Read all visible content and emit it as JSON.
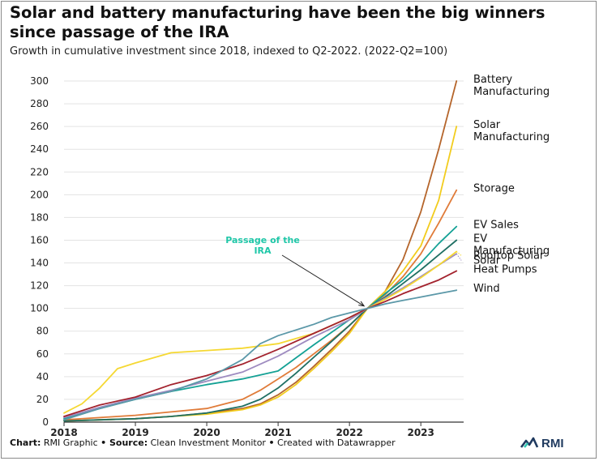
{
  "header": {
    "title": "Solar and battery manufacturing have been the big winners since passage of the IRA",
    "subtitle": "Growth in cumulative investment since 2018, indexed to Q2-2022. (2022-Q2=100)"
  },
  "footer": {
    "chart_label": "Chart:",
    "chart_value": " RMI Graphic ",
    "sep1": "•",
    "source_label": " Source:",
    "source_value": " Clean Investment Monitor ",
    "sep2": "•",
    "created": " Created with Datawrapper"
  },
  "logo": {
    "text": "RMI",
    "icon": "rmi-logo-icon",
    "color": "#1f3a5f"
  },
  "chart_data": {
    "type": "line",
    "title": "Solar and battery manufacturing have been the big winners since passage of the IRA",
    "subtitle": "Growth in cumulative investment since 2018, indexed to Q2-2022. (2022-Q2=100)",
    "xlabel": "",
    "ylabel": "",
    "xlim": [
      2018,
      2023.6
    ],
    "ylim": [
      0,
      300
    ],
    "x_ticks": [
      2018,
      2019,
      2020,
      2021,
      2022,
      2023
    ],
    "x_tick_labels": [
      "2018",
      "2019",
      "2020",
      "2021",
      "2022",
      "2023"
    ],
    "y_ticks": [
      0,
      20,
      40,
      60,
      80,
      100,
      120,
      140,
      160,
      180,
      200,
      220,
      240,
      260,
      280,
      300
    ],
    "y_tick_labels": [
      "0",
      "20",
      "40",
      "60",
      "80",
      "100",
      "120",
      "140",
      "160",
      "180",
      "200",
      "220",
      "240",
      "260",
      "280",
      "300"
    ],
    "grid": true,
    "legend": "direct labels at line ends",
    "annotation": {
      "text_line1": "Passage of the",
      "text_line2": "IRA",
      "color": "#1fc7a8",
      "x": 2022.25,
      "y": 100
    },
    "series": [
      {
        "name": "Battery Manufacturing",
        "label_lines": [
          "Battery",
          "Manufacturing"
        ],
        "color": "#b5652b",
        "x": [
          2018,
          2018.5,
          2019,
          2019.5,
          2020,
          2020.5,
          2020.75,
          2021,
          2021.25,
          2021.5,
          2021.75,
          2022,
          2022.25,
          2022.5,
          2022.75,
          2023,
          2023.25,
          2023.5
        ],
        "y": [
          1,
          2,
          3,
          5,
          8,
          12,
          16,
          24,
          35,
          49,
          64,
          80,
          100,
          115,
          143,
          185,
          240,
          300
        ]
      },
      {
        "name": "Solar Manufacturing",
        "label_lines": [
          "Solar",
          "Manufacturing"
        ],
        "color": "#f2cc1d",
        "x": [
          2018,
          2018.5,
          2019,
          2019.5,
          2020,
          2020.5,
          2020.75,
          2021,
          2021.25,
          2021.5,
          2021.75,
          2022,
          2022.25,
          2022.5,
          2022.75,
          2023,
          2023.25,
          2023.5
        ],
        "y": [
          1,
          2,
          3,
          5,
          7,
          11,
          15,
          22,
          33,
          47,
          62,
          78,
          100,
          115,
          133,
          155,
          195,
          260
        ]
      },
      {
        "name": "Storage",
        "label_lines": [
          "Storage"
        ],
        "color": "#e07b39",
        "x": [
          2018,
          2018.5,
          2019,
          2019.5,
          2020,
          2020.5,
          2020.75,
          2021,
          2021.25,
          2021.5,
          2021.75,
          2022,
          2022.25,
          2022.5,
          2022.75,
          2023,
          2023.25,
          2023.5
        ],
        "y": [
          2,
          4,
          6,
          9,
          12,
          20,
          28,
          38,
          48,
          60,
          72,
          85,
          100,
          112,
          128,
          148,
          175,
          204
        ]
      },
      {
        "name": "EV Sales",
        "label_lines": [
          "EV Sales"
        ],
        "color": "#14a195",
        "x": [
          2018,
          2018.5,
          2019,
          2019.5,
          2020,
          2020.5,
          2021,
          2021.5,
          2022,
          2022.25,
          2022.5,
          2022.75,
          2023,
          2023.25,
          2023.5
        ],
        "y": [
          3,
          12,
          20,
          27,
          33,
          38,
          45,
          68,
          90,
          100,
          113,
          125,
          140,
          157,
          172
        ]
      },
      {
        "name": "EV Manufacturing",
        "label_lines": [
          "EV",
          "Manufacturing"
        ],
        "color": "#1f6f63",
        "x": [
          2018,
          2018.5,
          2019,
          2019.5,
          2020,
          2020.5,
          2020.75,
          2021,
          2021.25,
          2021.5,
          2021.75,
          2022,
          2022.25,
          2022.5,
          2022.75,
          2023,
          2023.25,
          2023.5
        ],
        "y": [
          1,
          2,
          3,
          5,
          8,
          14,
          20,
          30,
          43,
          57,
          71,
          85,
          100,
          110,
          122,
          134,
          147,
          160
        ]
      },
      {
        "name": "Solar",
        "label_lines": [
          "Solar"
        ],
        "color": "#9e8bc0",
        "x": [
          2018,
          2018.5,
          2019,
          2019.5,
          2020,
          2020.5,
          2021,
          2021.5,
          2022,
          2022.25,
          2022.5,
          2022.75,
          2023,
          2023.25,
          2023.5
        ],
        "y": [
          4,
          13,
          21,
          28,
          36,
          44,
          58,
          75,
          90,
          100,
          109,
          118,
          128,
          138,
          148
        ]
      },
      {
        "name": "Rooftop Solar",
        "label_lines": [
          "Rooftop Solar"
        ],
        "color": "#f5d832",
        "x": [
          2018,
          2018.25,
          2018.5,
          2018.75,
          2019,
          2019.5,
          2020,
          2020.5,
          2021,
          2021.5,
          2022,
          2022.25,
          2022.5,
          2022.75,
          2023,
          2023.25,
          2023.5
        ],
        "y": [
          8,
          16,
          30,
          47,
          52,
          61,
          63,
          65,
          69,
          78,
          92,
          100,
          108,
          117,
          127,
          138,
          150
        ]
      },
      {
        "name": "Heat Pumps",
        "label_lines": [
          "Heat Pumps"
        ],
        "color": "#a3232e",
        "x": [
          2018,
          2018.5,
          2019,
          2019.5,
          2020,
          2020.5,
          2021,
          2021.5,
          2022,
          2022.25,
          2022.5,
          2022.75,
          2023,
          2023.25,
          2023.5
        ],
        "y": [
          5,
          15,
          22,
          33,
          41,
          51,
          64,
          78,
          92,
          100,
          106,
          113,
          119,
          125,
          133
        ]
      },
      {
        "name": "Wind",
        "label_lines": [
          "Wind"
        ],
        "color": "#5b98a8",
        "x": [
          2018,
          2018.5,
          2019,
          2019.5,
          2020,
          2020.5,
          2020.75,
          2021,
          2021.5,
          2021.75,
          2022,
          2022.25,
          2022.5,
          2022.75,
          2023,
          2023.25,
          2023.5
        ],
        "y": [
          2,
          12,
          20,
          27,
          38,
          55,
          69,
          76,
          86,
          92,
          96,
          100,
          104,
          107,
          110,
          113,
          116
        ]
      }
    ]
  }
}
